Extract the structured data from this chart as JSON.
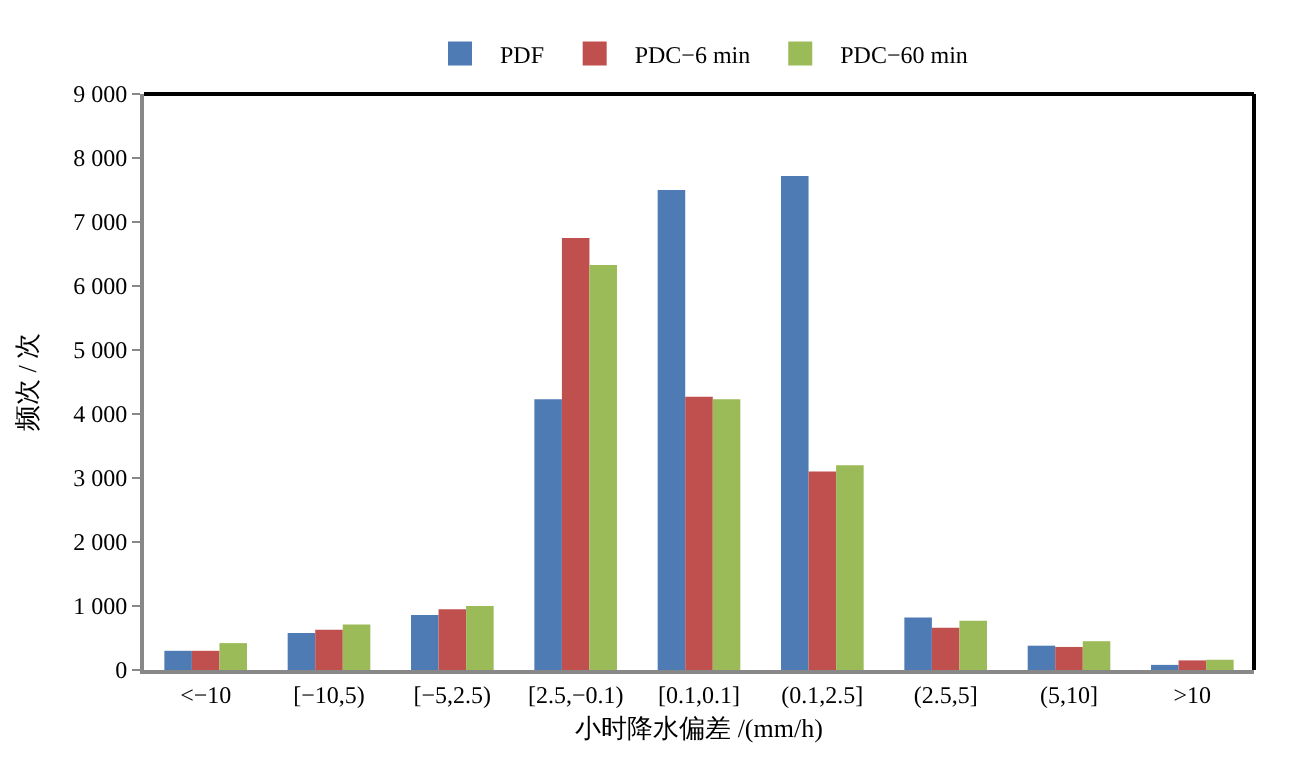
{
  "chart_data": {
    "type": "bar",
    "xlabel": "小时降水偏差 /(mm/h)",
    "ylabel": "频次 / 次",
    "categories": [
      "<−10",
      "[−10,5)",
      "[−5,2.5)",
      "[2.5,−0.1)",
      "[0.1,0.1]",
      "(0.1,2.5]",
      "(2.5,5]",
      "(5,10]",
      ">10"
    ],
    "series": [
      {
        "name": "PDF",
        "color": "#4f7bb5",
        "values": [
          300,
          580,
          860,
          4230,
          7500,
          7720,
          820,
          380,
          80
        ]
      },
      {
        "name": "PDC−6 min",
        "color": "#c0504d",
        "values": [
          300,
          630,
          950,
          6750,
          4270,
          3100,
          660,
          360,
          150
        ]
      },
      {
        "name": "PDC−60 min",
        "color": "#9bbb59",
        "values": [
          420,
          710,
          1000,
          6330,
          4230,
          3200,
          770,
          450,
          160
        ]
      }
    ],
    "ylim": [
      0,
      9000
    ],
    "yticks": [
      {
        "value": 0,
        "label": "0"
      },
      {
        "value": 1000,
        "label": "1 000"
      },
      {
        "value": 2000,
        "label": "2 000"
      },
      {
        "value": 3000,
        "label": "3 000"
      },
      {
        "value": 4000,
        "label": "4 000"
      },
      {
        "value": 5000,
        "label": "5 000"
      },
      {
        "value": 6000,
        "label": "6 000"
      },
      {
        "value": 7000,
        "label": "7 000"
      },
      {
        "value": 8000,
        "label": "8 000"
      },
      {
        "value": 9000,
        "label": "9 000"
      }
    ],
    "legend": "top"
  }
}
